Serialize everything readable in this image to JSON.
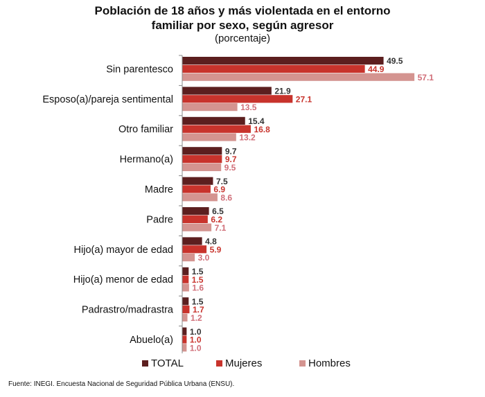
{
  "title_line1": "Población de 18 años y más violentada en el entorno",
  "title_line2": "familiar por sexo, según agresor",
  "subtitle": "(porcentaje)",
  "source": "Fuente: INEGI. Encuesta Nacional de Seguridad Pública Urbana (ENSU).",
  "chart_data": {
    "type": "bar",
    "orientation": "horizontal",
    "grid": false,
    "legend_position": "bottom",
    "categories": [
      "Sin parentesco",
      "Esposo(a)/pareja sentimental",
      "Otro familiar",
      "Hermano(a)",
      "Madre",
      "Padre",
      "Hijo(a) mayor de edad",
      "Hijo(a) menor de edad",
      "Padrastro/madrastra",
      "Abuelo(a)"
    ],
    "series": [
      {
        "name": "TOTAL",
        "color": "#5c1f1f",
        "label_color": "#333333",
        "values": [
          49.5,
          21.9,
          15.4,
          9.7,
          7.5,
          6.5,
          4.8,
          1.5,
          1.5,
          1.0
        ]
      },
      {
        "name": "Mujeres",
        "color": "#c8332c",
        "label_color": "#c8332c",
        "values": [
          44.9,
          27.1,
          16.8,
          9.7,
          6.9,
          6.2,
          5.9,
          1.5,
          1.7,
          1.0
        ]
      },
      {
        "name": "Hombres",
        "color": "#d49490",
        "label_color": "#d06e78",
        "values": [
          57.1,
          13.5,
          13.2,
          9.5,
          8.6,
          7.1,
          3.0,
          1.6,
          1.2,
          1.0
        ]
      }
    ]
  }
}
